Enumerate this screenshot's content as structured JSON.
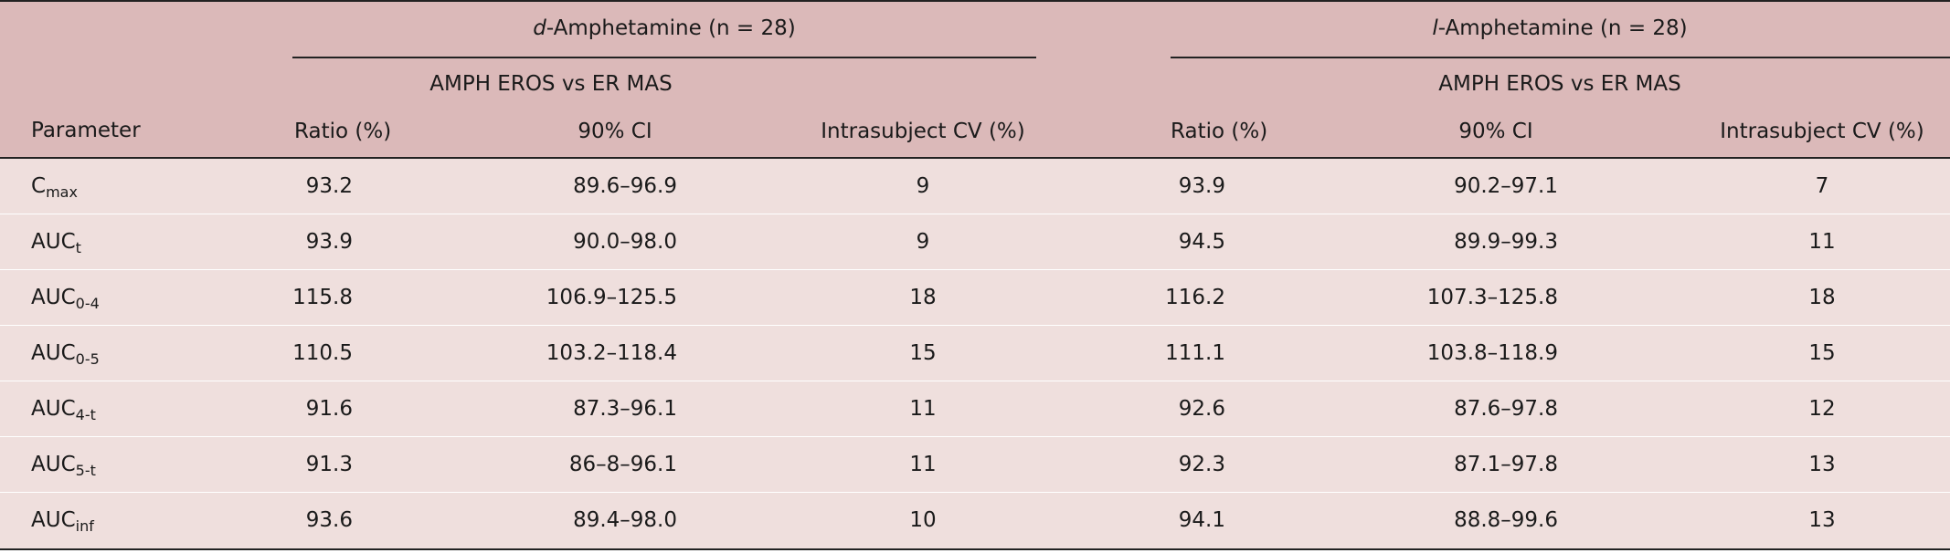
{
  "table": {
    "group_headers": [
      {
        "prefix": "d",
        "suffix": "-Amphetamine (n = 28)"
      },
      {
        "prefix": "l",
        "suffix": "-Amphetamine (n = 28)"
      }
    ],
    "comparison": "AMPH EROS vs ER MAS",
    "parameter_header": "Parameter",
    "column_headers": [
      "Ratio (%)",
      "90% CI",
      "Intrasubject CV (%)"
    ],
    "rows": [
      {
        "base": "C",
        "sub": "max",
        "d": [
          "93.2",
          "89.6–96.9",
          "9"
        ],
        "l": [
          "93.9",
          "90.2–97.1",
          "7"
        ]
      },
      {
        "base": "AUC",
        "sub": "t",
        "d": [
          "93.9",
          "90.0–98.0",
          "9"
        ],
        "l": [
          "94.5",
          "89.9–99.3",
          "11"
        ]
      },
      {
        "base": "AUC",
        "sub": "0-4",
        "d": [
          "115.8",
          "106.9–125.5",
          "18"
        ],
        "l": [
          "116.2",
          "107.3–125.8",
          "18"
        ]
      },
      {
        "base": "AUC",
        "sub": "0-5",
        "d": [
          "110.5",
          "103.2–118.4",
          "15"
        ],
        "l": [
          "111.1",
          "103.8–118.9",
          "15"
        ]
      },
      {
        "base": "AUC",
        "sub": "4-t",
        "d": [
          "91.6",
          "87.3–96.1",
          "11"
        ],
        "l": [
          "92.6",
          "87.6–97.8",
          "12"
        ]
      },
      {
        "base": "AUC",
        "sub": "5-t",
        "d": [
          "91.3",
          "86–8–96.1",
          "11"
        ],
        "l": [
          "92.3",
          "87.1–97.8",
          "13"
        ]
      },
      {
        "base": "AUC",
        "sub": "inf",
        "d": [
          "93.6",
          "89.4–98.0",
          "10"
        ],
        "l": [
          "94.1",
          "88.8–99.6",
          "13"
        ]
      }
    ]
  }
}
